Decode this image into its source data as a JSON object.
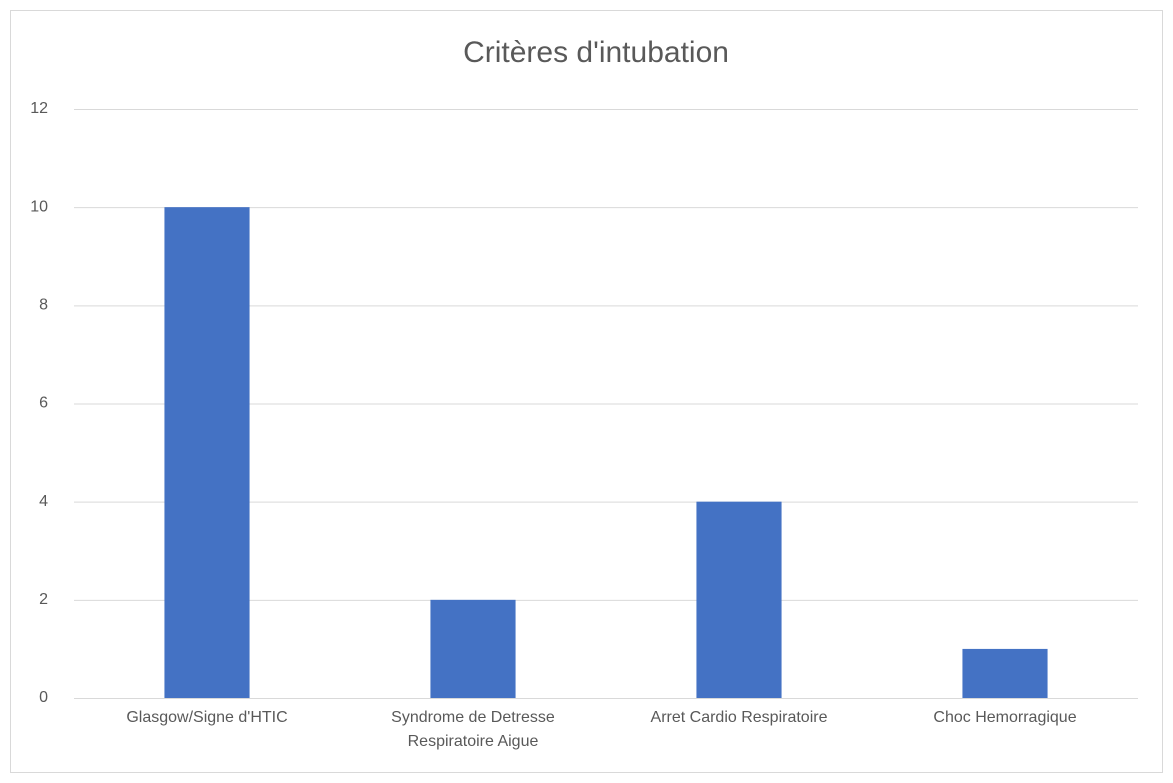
{
  "chart_data": {
    "type": "bar",
    "title": "Critères d'intubation",
    "categories": [
      "Glasgow/Signe d'HTIC",
      "Syndrome de Detresse Respiratoire Aigue",
      "Arret Cardio Respiratoire",
      "Choc Hemorragique"
    ],
    "values": [
      10,
      2,
      4,
      1
    ],
    "color": "#4472c4",
    "ylim": [
      0,
      12
    ],
    "yticks": [
      0,
      2,
      4,
      6,
      8,
      10,
      12
    ],
    "grid": true
  }
}
